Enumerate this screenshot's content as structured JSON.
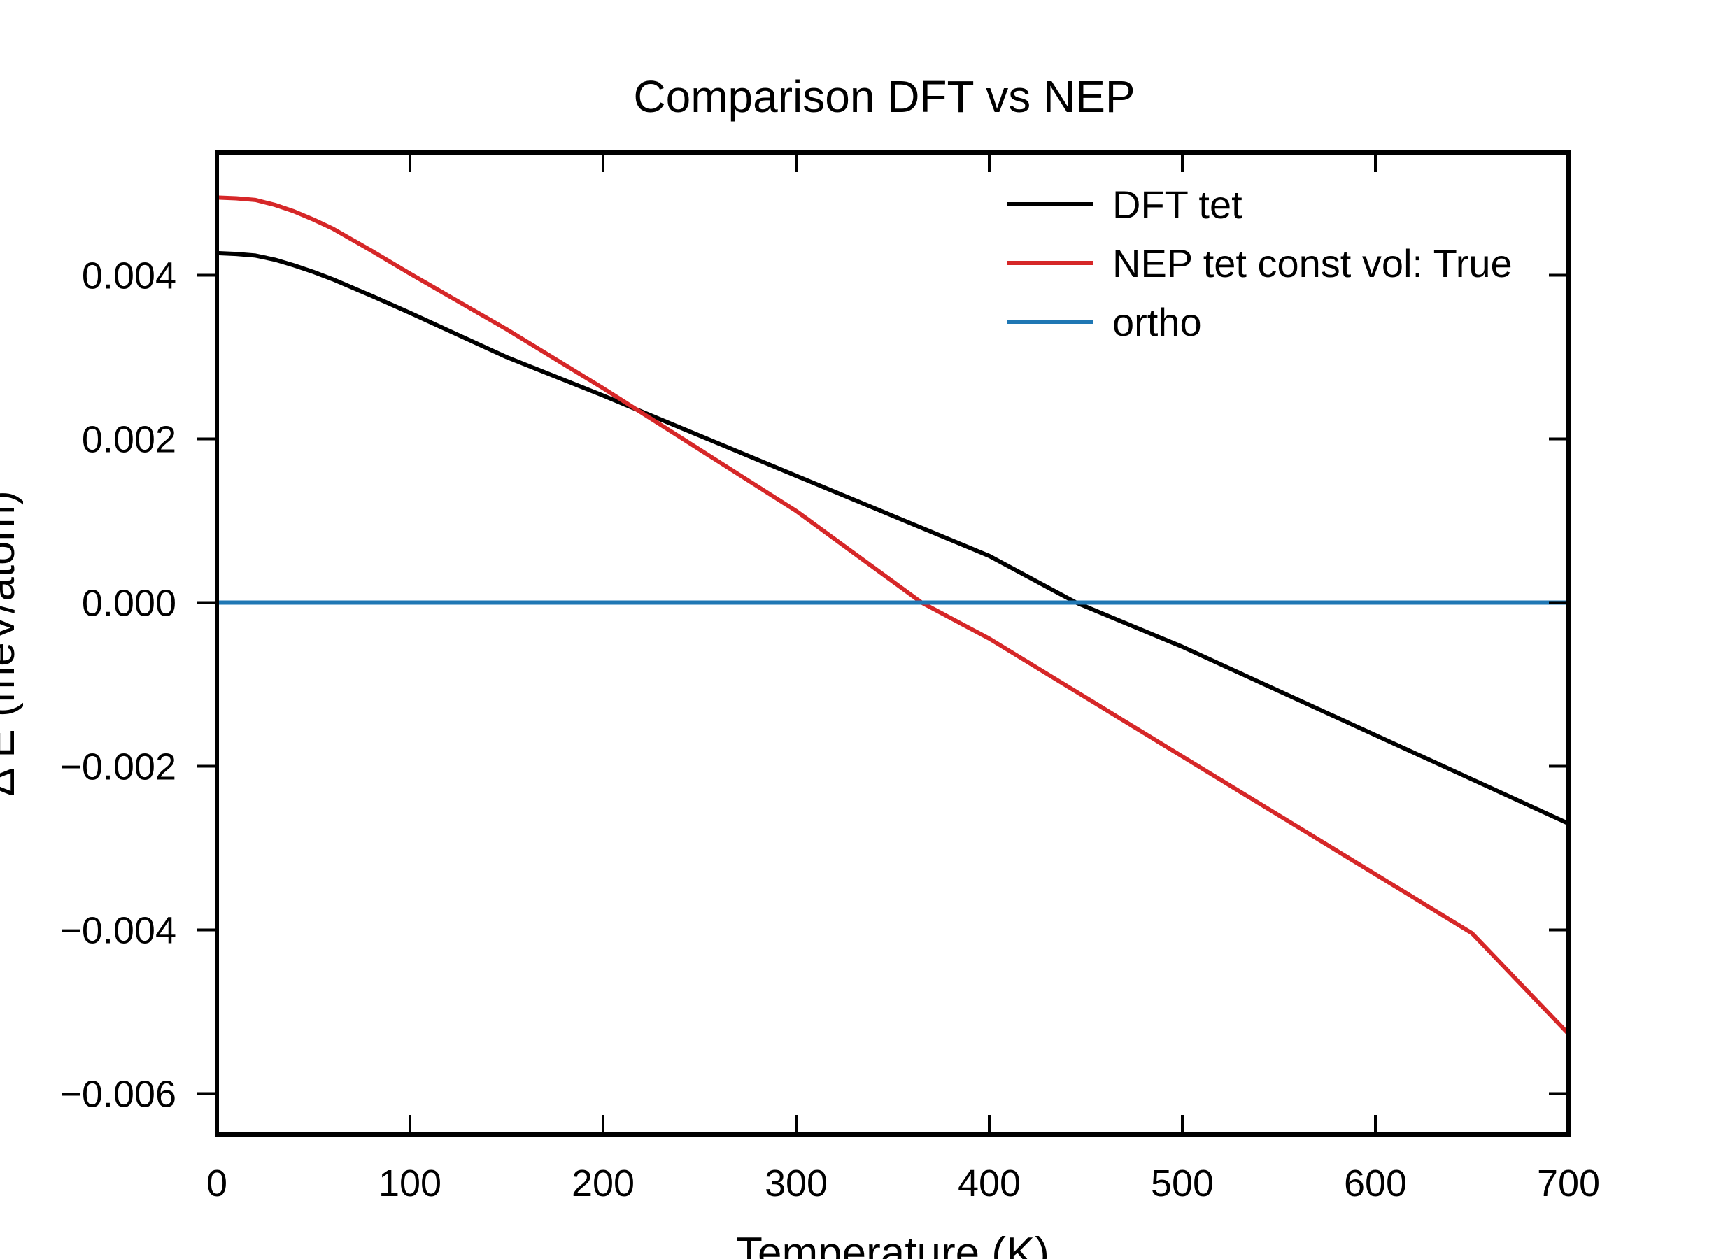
{
  "chart_data": {
    "type": "line",
    "title": "Comparison DFT vs NEP",
    "xlabel": "Temperature (K)",
    "ylabel": "Δ E (meV/atom)",
    "xlim": [
      0,
      700
    ],
    "ylim": [
      -0.0065,
      0.0055
    ],
    "x_ticks": [
      0,
      100,
      200,
      300,
      400,
      500,
      600,
      700
    ],
    "x_tick_labels": [
      "0",
      "100",
      "200",
      "300",
      "400",
      "500",
      "600",
      "700"
    ],
    "y_ticks": [
      -0.006,
      -0.004,
      -0.002,
      0.0,
      0.002,
      0.004
    ],
    "y_tick_labels": [
      "−0.006",
      "−0.004",
      "−0.002",
      "0.000",
      "0.002",
      "0.004"
    ],
    "grid": false,
    "legend_position": "top-right",
    "series": [
      {
        "name": "DFT tet",
        "color": "#000000",
        "x": [
          0,
          10,
          20,
          30,
          40,
          50,
          60,
          80,
          100,
          150,
          200,
          250,
          300,
          350,
          400,
          445,
          500,
          550,
          600,
          650,
          700
        ],
        "y": [
          0.00427,
          0.00426,
          0.00424,
          0.00419,
          0.00412,
          0.00404,
          0.00395,
          0.00375,
          0.00354,
          0.003,
          0.00253,
          0.00204,
          0.00155,
          0.00106,
          0.00057,
          0.0,
          -0.00054,
          -0.00108,
          -0.00162,
          -0.00216,
          -0.0027
        ]
      },
      {
        "name": "NEP tet const vol: True",
        "color": "#d62728",
        "x": [
          0,
          10,
          20,
          30,
          40,
          50,
          60,
          80,
          100,
          150,
          200,
          250,
          300,
          365,
          400,
          450,
          500,
          550,
          600,
          650,
          700
        ],
        "y": [
          0.00495,
          0.00494,
          0.00492,
          0.00486,
          0.00478,
          0.00468,
          0.00457,
          0.0043,
          0.00402,
          0.00334,
          0.00262,
          0.00187,
          0.00112,
          0.0,
          -0.00044,
          -0.00116,
          -0.00188,
          -0.0026,
          -0.00332,
          -0.00404,
          -0.00527
        ]
      },
      {
        "name": "ortho",
        "color": "#1f77b4",
        "x": [
          0,
          700
        ],
        "y": [
          0.0,
          0.0
        ]
      }
    ]
  }
}
